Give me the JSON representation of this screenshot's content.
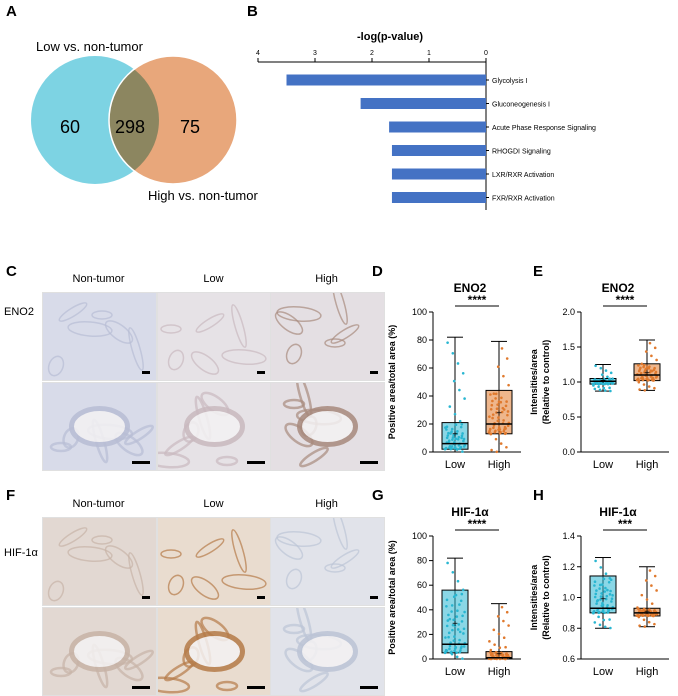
{
  "panels": {
    "A": "A",
    "B": "B",
    "C": "C",
    "D": "D",
    "E": "E",
    "F": "F",
    "G": "G",
    "H": "H"
  },
  "venn": {
    "label_low": "Low vs. non-tumor",
    "label_high": "High vs. non-tumor",
    "left_only": "60",
    "overlap": "298",
    "right_only": "75",
    "colors": {
      "left": "#7dd3e3",
      "right": "#e8a77b",
      "overlap": "#8c8660"
    }
  },
  "chart_data": [
    {
      "id": "B",
      "type": "bar",
      "orientation": "horizontal",
      "title": "-log(p-value)",
      "categories": [
        "Glycolysis I",
        "Gluconeogenesis I",
        "Acute Phase Response Signaling",
        "RHOGDI Signaling",
        "LXR/RXR Activation",
        "FXR/RXR Activation"
      ],
      "values": [
        3.5,
        2.2,
        1.7,
        1.65,
        1.65,
        1.65
      ],
      "xlim": [
        4,
        0
      ],
      "ticks": [
        "4",
        "3",
        "2",
        "1",
        "0"
      ],
      "color": "#4472c4"
    },
    {
      "id": "D",
      "type": "box",
      "title": "ENO2",
      "ylabel": "Positive area/total area (%)",
      "categories": [
        "Low",
        "High"
      ],
      "ylim": [
        0,
        100
      ],
      "yticks": [
        "0",
        "20",
        "40",
        "60",
        "80",
        "100"
      ],
      "boxes": [
        {
          "name": "Low",
          "min": 0,
          "q1": 2,
          "median": 6,
          "q3": 21,
          "max": 82,
          "mean": 13
        },
        {
          "name": "High",
          "min": 0,
          "q1": 13,
          "median": 20,
          "q3": 44,
          "max": 79,
          "mean": 28
        }
      ],
      "significance": "****",
      "colors": [
        "#29b6d1",
        "#e07a2e"
      ]
    },
    {
      "id": "E",
      "type": "box",
      "title": "ENO2",
      "ylabel": "Intensities/area",
      "ylabel2": "(Relative to control)",
      "categories": [
        "Low",
        "High"
      ],
      "ylim": [
        0,
        2.0
      ],
      "yticks": [
        "0.0",
        "0.5",
        "1.0",
        "1.5",
        "2.0"
      ],
      "boxes": [
        {
          "name": "Low",
          "min": 0.87,
          "q1": 0.97,
          "median": 1.01,
          "q3": 1.05,
          "max": 1.25,
          "mean": 1.02
        },
        {
          "name": "High",
          "min": 0.88,
          "q1": 1.02,
          "median": 1.1,
          "q3": 1.26,
          "max": 1.6,
          "mean": 1.13
        }
      ],
      "significance": "****",
      "colors": [
        "#29b6d1",
        "#e07a2e"
      ]
    },
    {
      "id": "G",
      "type": "box",
      "title": "HIF-1α",
      "ylabel": "Positive area/total area (%)",
      "categories": [
        "Low",
        "High"
      ],
      "ylim": [
        0,
        100
      ],
      "yticks": [
        "0",
        "20",
        "40",
        "60",
        "80",
        "100"
      ],
      "boxes": [
        {
          "name": "Low",
          "min": 0,
          "q1": 5,
          "median": 12,
          "q3": 56,
          "max": 82,
          "mean": 29
        },
        {
          "name": "High",
          "min": 0,
          "q1": 0,
          "median": 1,
          "q3": 6,
          "max": 45,
          "mean": 4
        }
      ],
      "significance": "****",
      "colors": [
        "#29b6d1",
        "#e07a2e"
      ]
    },
    {
      "id": "H",
      "type": "box",
      "title": "HIF-1α",
      "ylabel": "Intensities/area",
      "ylabel2": "(Relative to control)",
      "categories": [
        "Low",
        "High"
      ],
      "ylim": [
        0.6,
        1.4
      ],
      "yticks": [
        "0.6",
        "0.8",
        "1.0",
        "1.2",
        "1.4"
      ],
      "boxes": [
        {
          "name": "Low",
          "min": 0.8,
          "q1": 0.9,
          "median": 0.93,
          "q3": 1.14,
          "max": 1.26,
          "mean": 0.99
        },
        {
          "name": "High",
          "min": 0.81,
          "q1": 0.88,
          "median": 0.9,
          "q3": 0.93,
          "max": 1.2,
          "mean": 0.91
        }
      ],
      "significance": "***",
      "colors": [
        "#29b6d1",
        "#e07a2e"
      ]
    }
  ],
  "micrographs": {
    "C": {
      "col_headers": [
        "Non-tumor",
        "Low",
        "High"
      ],
      "row_label": "ENO2",
      "stain": [
        "#d8dbe9",
        "#e6e2e6",
        "#e4dfe3"
      ],
      "stain_dark": [
        "#b8bdd4",
        "#c9b9bf",
        "#a88a7d"
      ]
    },
    "F": {
      "col_headers": [
        "Non-tumor",
        "Low",
        "High"
      ],
      "row_label": "HIF-1α",
      "stain": [
        "#e2d8d2",
        "#e9dccf",
        "#e1e3ea"
      ],
      "stain_dark": [
        "#c7b3a6",
        "#b57b48",
        "#bcc4d6"
      ]
    }
  }
}
